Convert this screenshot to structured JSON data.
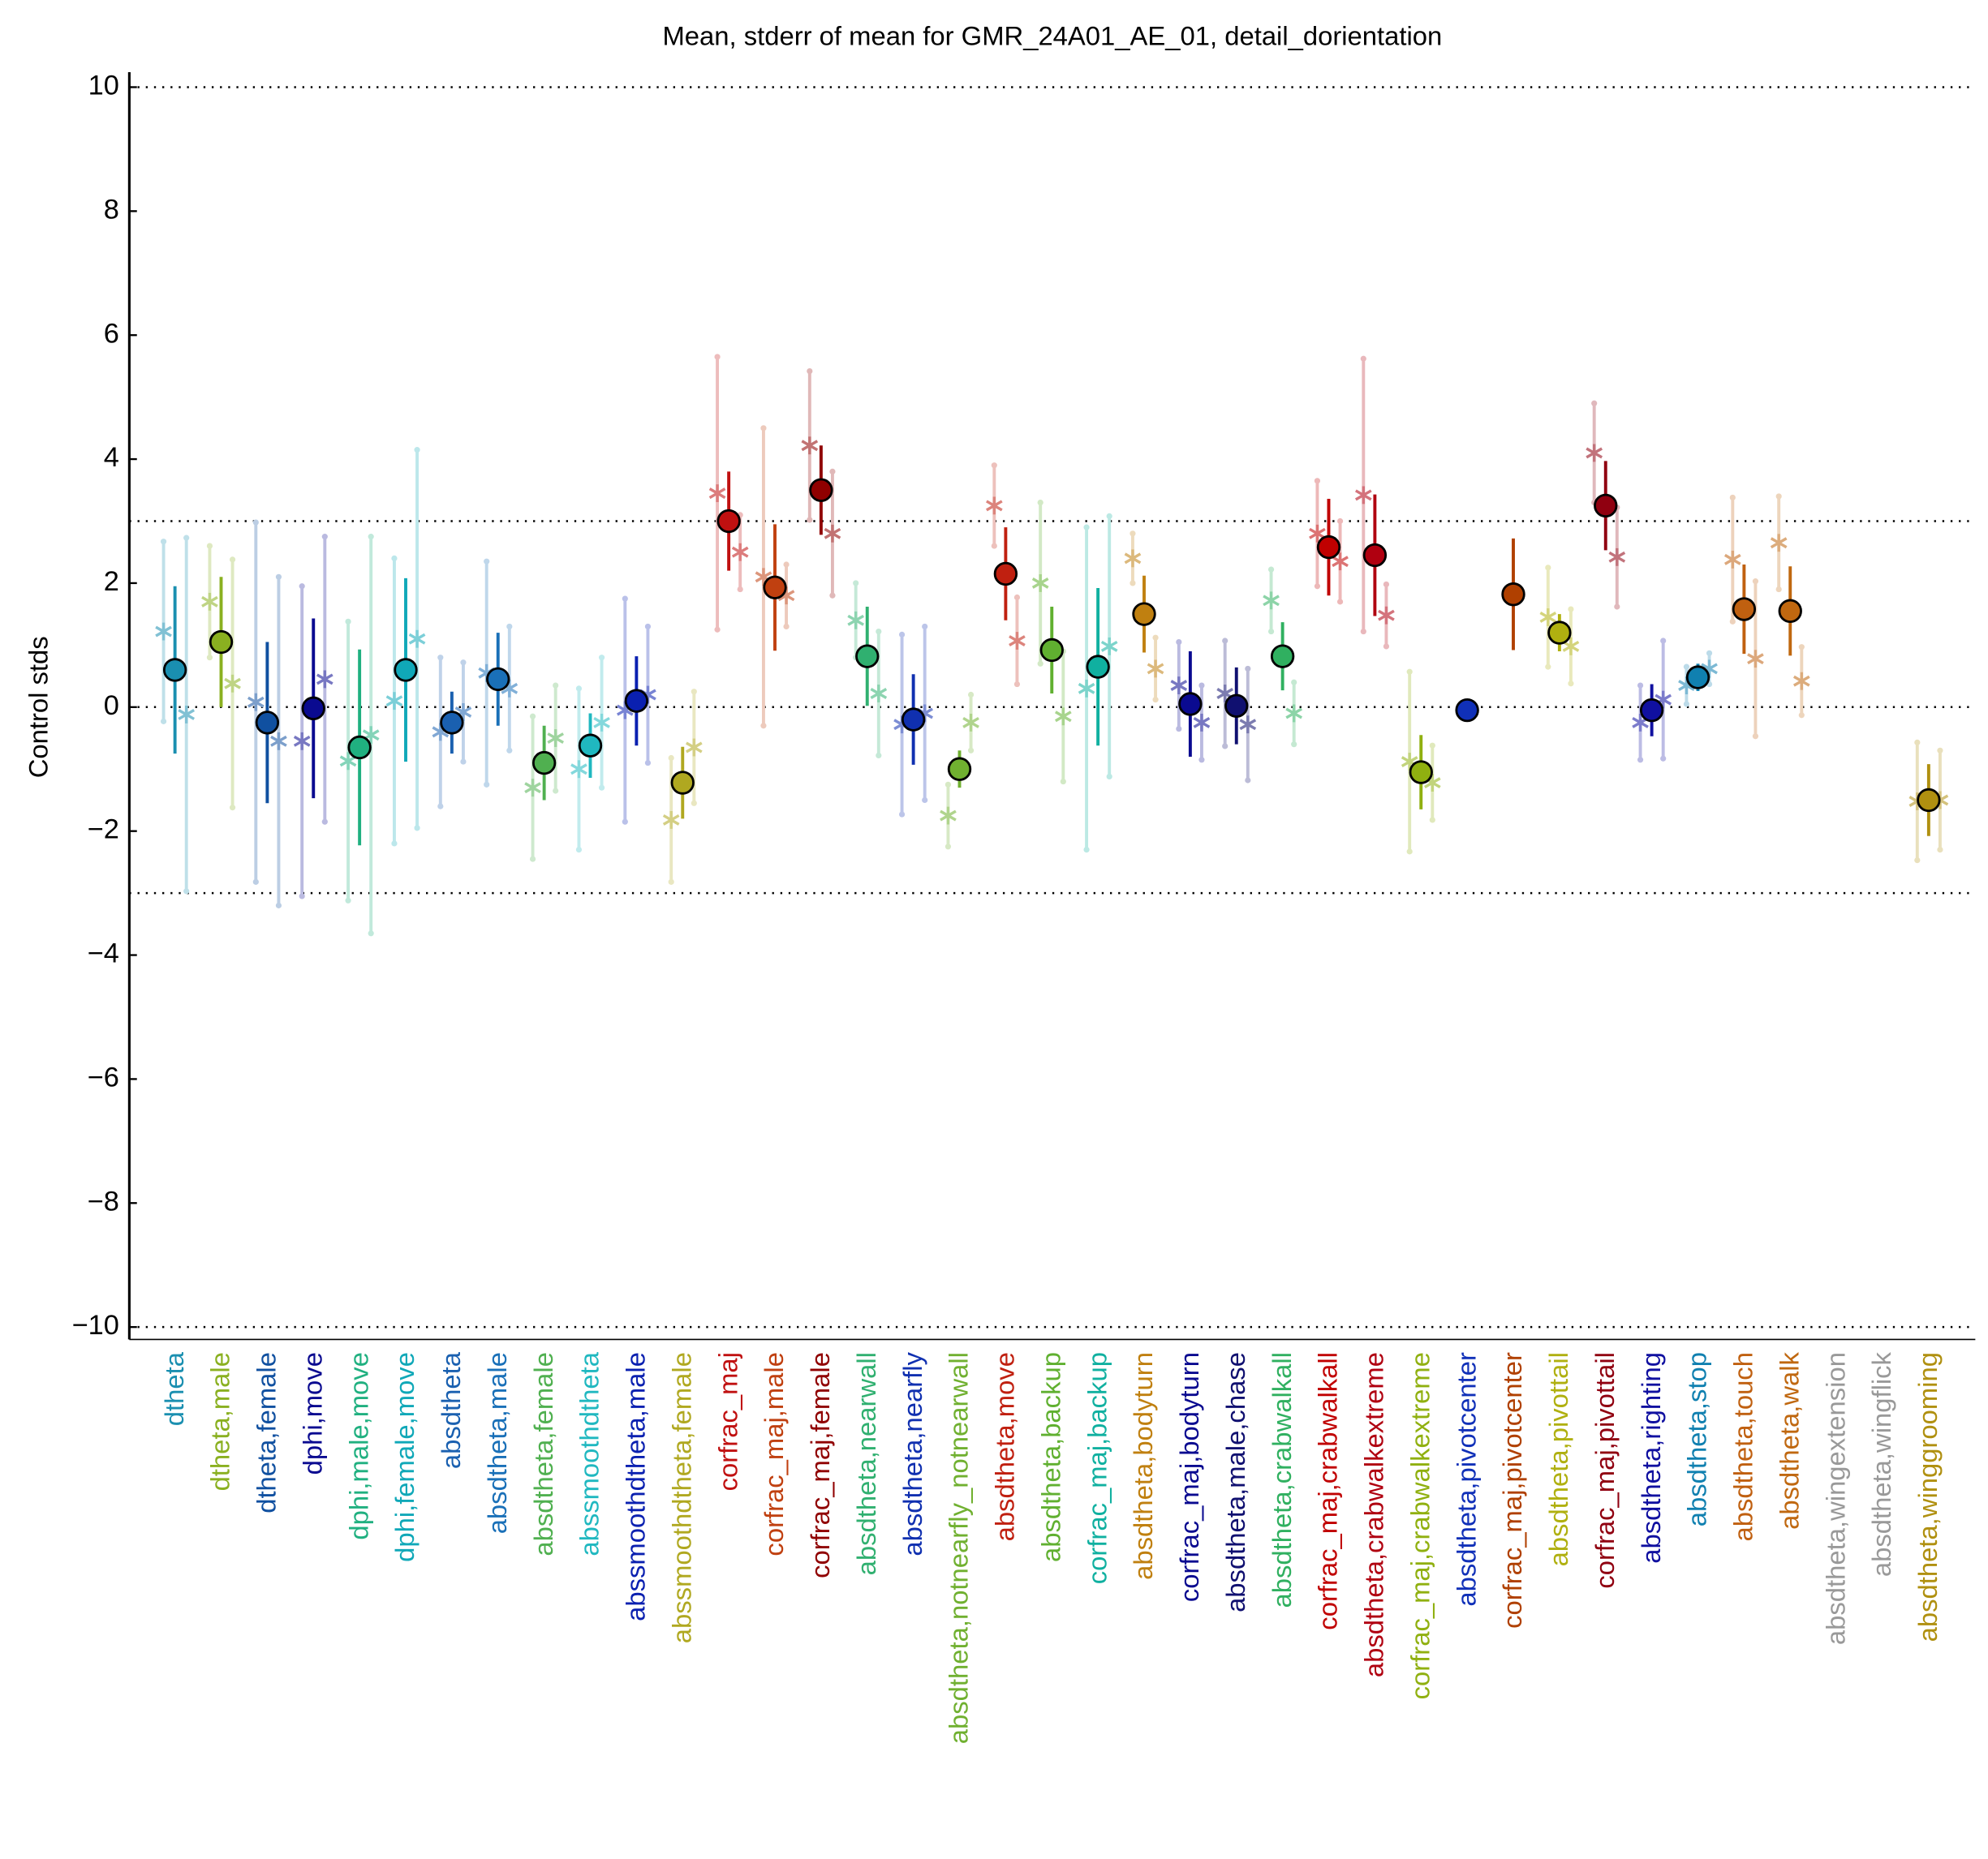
{
  "chart_data": {
    "type": "errorbar",
    "title": "Mean, stderr of mean for GMR_24A01_AE_01, detail_dorientation",
    "y_label": "Control stds",
    "ylim": [
      -10.2,
      10.2
    ],
    "yticks": [
      {
        "value": -10,
        "label": "−10"
      },
      {
        "value": -8,
        "label": "−8"
      },
      {
        "value": -6,
        "label": "−6"
      },
      {
        "value": -4,
        "label": "−4"
      },
      {
        "value": -2,
        "label": "−2"
      },
      0,
      2,
      4,
      6,
      8,
      10
    ],
    "reference_lines": [
      10,
      3,
      0,
      -3,
      -10
    ],
    "categories": [
      "dtheta",
      "dtheta,male",
      "dtheta,female",
      "dphi,move",
      "dphi,male,move",
      "dphi,female,move",
      "absdtheta",
      "absdtheta,male",
      "absdtheta,female",
      "abssmoothdtheta",
      "abssmoothdtheta,male",
      "abssmoothdtheta,female",
      "corfrac_maj",
      "corfrac_maj,male",
      "corfrac_maj,female",
      "absdtheta,nearwall",
      "absdtheta,nearfly",
      "absdtheta,notnearfly_notnearwall",
      "absdtheta,move",
      "absdtheta,backup",
      "corfrac_maj,backup",
      "absdtheta,bodyturn",
      "corfrac_maj,bodyturn",
      "absdtheta,male,chase",
      "absdtheta,crabwalkall",
      "corfrac_maj,crabwalkall",
      "absdtheta,crabwalkextreme",
      "corfrac_maj,crabwalkextreme",
      "absdtheta,pivotcenter",
      "corfrac_maj,pivotcenter",
      "absdtheta,pivottail",
      "corfrac_maj,pivottail",
      "absdtheta,righting",
      "absdtheta,stop",
      "absdtheta,touch",
      "absdtheta,walk",
      "absdtheta,wingextension",
      "absdtheta,wingflick",
      "absdtheta,winggrooming"
    ],
    "colors": [
      "#1a8fb0",
      "#8ab020",
      "#1050a0",
      "#0a0a90",
      "#20b080",
      "#10a8b8",
      "#1a60b0",
      "#1a70b8",
      "#50b050",
      "#20b8c0",
      "#0a20b0",
      "#b0a820",
      "#c01010",
      "#c04010",
      "#900000",
      "#30b070",
      "#1030b0",
      "#70b030",
      "#c02010",
      "#60b030",
      "#10b0a0",
      "#c08010",
      "#0a0a90",
      "#101070",
      "#30b060",
      "#c00000",
      "#b00010",
      "#90b010",
      "#1030b8",
      "#b04000",
      "#b0b010",
      "#900010",
      "#1010a0",
      "#1080b0",
      "#c06010",
      "#c06810",
      "#999999",
      "#999999",
      "#b09010"
    ],
    "values": [
      0.6,
      1.05,
      -0.25,
      -0.02,
      -0.65,
      0.6,
      -0.25,
      0.45,
      -0.9,
      -0.62,
      0.1,
      -1.22,
      3.0,
      1.93,
      3.5,
      0.82,
      -0.2,
      -1.0,
      2.15,
      0.92,
      0.65,
      1.5,
      0.05,
      0.02,
      0.82,
      2.58,
      2.45,
      -1.05,
      -0.05,
      1.82,
      1.2,
      3.25,
      -0.05,
      0.48,
      1.58,
      1.55,
      null,
      null,
      -1.5
    ],
    "errors": [
      1.35,
      1.05,
      1.3,
      1.45,
      1.58,
      1.48,
      0.5,
      0.75,
      0.6,
      0.52,
      0.72,
      0.58,
      0.8,
      1.02,
      0.72,
      0.8,
      0.73,
      0.3,
      0.75,
      0.7,
      1.27,
      0.62,
      0.85,
      0.62,
      0.55,
      0.78,
      0.98,
      0.6,
      null,
      0.9,
      0.3,
      0.72,
      0.42,
      0.22,
      0.72,
      0.72,
      null,
      null,
      0.58
    ],
    "left_values": [
      1.22,
      1.7,
      0.08,
      -0.55,
      -0.87,
      0.1,
      -0.4,
      0.55,
      -1.3,
      -1.0,
      -0.05,
      -1.82,
      3.45,
      2.1,
      4.22,
      1.4,
      -0.28,
      -1.75,
      3.25,
      2.0,
      0.3,
      2.4,
      0.35,
      0.22,
      1.72,
      2.8,
      3.42,
      -0.88,
      null,
      null,
      1.45,
      4.1,
      -0.25,
      0.35,
      2.38,
      2.65,
      null,
      null,
      -1.52
    ],
    "left_errors": [
      1.45,
      0.9,
      2.9,
      2.5,
      2.25,
      2.3,
      1.2,
      1.8,
      1.15,
      1.3,
      1.8,
      1.0,
      2.2,
      2.4,
      1.2,
      0.6,
      1.45,
      0.5,
      0.65,
      1.3,
      2.6,
      0.4,
      0.7,
      0.85,
      0.5,
      0.85,
      2.2,
      1.45,
      null,
      null,
      0.8,
      0.8,
      0.6,
      0.3,
      1.0,
      0.75,
      null,
      null,
      0.95
    ],
    "right_values": [
      -0.12,
      0.38,
      -0.55,
      0.45,
      -0.45,
      1.1,
      -0.08,
      0.3,
      -0.5,
      -0.25,
      0.2,
      -0.65,
      2.5,
      1.8,
      2.8,
      0.22,
      -0.1,
      -0.25,
      1.07,
      -0.15,
      0.98,
      0.62,
      -0.25,
      -0.28,
      -0.1,
      2.35,
      1.48,
      -1.22,
      null,
      null,
      0.98,
      2.42,
      0.12,
      0.62,
      0.78,
      0.42,
      null,
      null,
      -1.5
    ],
    "right_errors": [
      2.85,
      2.0,
      2.65,
      2.3,
      3.2,
      3.05,
      0.8,
      1.0,
      0.85,
      1.05,
      1.1,
      0.9,
      0.6,
      0.5,
      1.0,
      1.0,
      1.4,
      0.45,
      0.7,
      1.05,
      2.1,
      0.5,
      0.6,
      0.9,
      0.5,
      0.65,
      0.5,
      0.6,
      null,
      null,
      0.6,
      0.8,
      0.95,
      0.25,
      1.25,
      0.55,
      null,
      null,
      0.8
    ]
  }
}
